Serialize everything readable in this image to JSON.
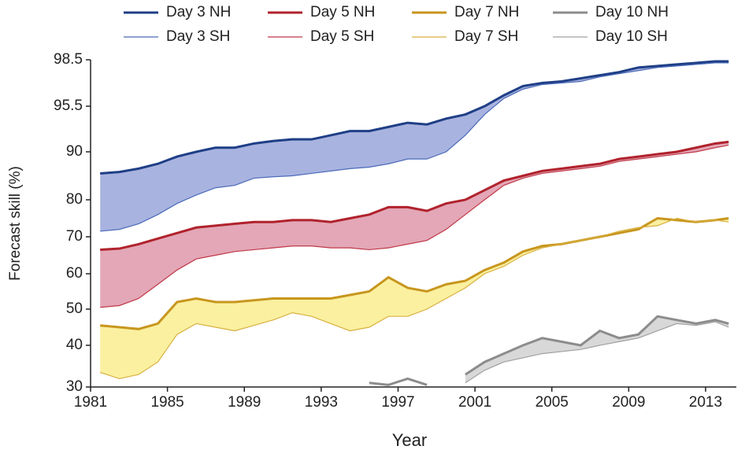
{
  "chart_data": {
    "type": "line",
    "x_label": "Year",
    "y_label": "Forecast skill (%)",
    "x": [
      1981.5,
      1982.5,
      1983.5,
      1984.5,
      1985.5,
      1986.5,
      1987.5,
      1988.5,
      1989.5,
      1990.5,
      1991.5,
      1992.5,
      1993.5,
      1994.5,
      1995.5,
      1996.5,
      1997.5,
      1998.5,
      1999.5,
      2000.5,
      2001.5,
      2002.5,
      2003.5,
      2004.5,
      2005.5,
      2006.5,
      2007.5,
      2008.5,
      2009.5,
      2010.5,
      2011.5,
      2012.5,
      2013.5,
      2014.2
    ],
    "series": [
      {
        "name": "Day 3 NH",
        "color": "#1f3f86",
        "values": [
          85.5,
          85.8,
          86.5,
          87.5,
          89,
          90,
          90.5,
          90.5,
          91,
          91.3,
          91.5,
          91.5,
          92,
          92.5,
          92.5,
          93,
          93.5,
          93.3,
          94,
          94.5,
          95.5,
          96.2,
          96.8,
          97,
          97.1,
          97.3,
          97.5,
          97.7,
          98,
          98.1,
          98.2,
          98.3,
          98.4,
          98.4
        ]
      },
      {
        "name": "Day 3 SH",
        "color": "#4a6ab8",
        "values": [
          71.5,
          72,
          73.5,
          76,
          79,
          81,
          82.5,
          83,
          84.5,
          84.8,
          85,
          85.5,
          86,
          86.5,
          86.8,
          87.5,
          88.5,
          88.5,
          90,
          92,
          94.5,
          96,
          96.6,
          96.9,
          97,
          97.1,
          97.4,
          97.6,
          97.8,
          98,
          98.1,
          98.2,
          98.3,
          98.3
        ]
      },
      {
        "name": "Day 5 NH",
        "color": "#b0222c",
        "values": [
          66.5,
          66.8,
          68,
          69.5,
          71,
          72.5,
          73,
          73.5,
          74,
          74,
          74.5,
          74.5,
          74,
          75,
          76,
          78,
          78,
          77,
          79,
          80,
          82,
          84,
          85,
          86,
          86.5,
          87,
          87.5,
          88.5,
          89,
          89.5,
          90,
          90.5,
          91,
          91.2
        ]
      },
      {
        "name": "Day 5 SH",
        "color": "#c03848",
        "values": [
          50.5,
          51,
          53,
          57,
          61,
          64,
          65,
          66,
          66.5,
          67,
          67.5,
          67.5,
          67,
          67,
          66.5,
          67,
          68,
          69,
          72,
          76,
          80,
          83,
          84.5,
          85.5,
          86,
          86.5,
          87,
          88,
          88.5,
          89,
          89.5,
          90,
          90.5,
          90.8
        ]
      },
      {
        "name": "Day 7 NH",
        "color": "#c8961e",
        "values": [
          45.5,
          45,
          44.5,
          46,
          52,
          53,
          52,
          52,
          52.5,
          53,
          53,
          53,
          53,
          54,
          55,
          59,
          56,
          55,
          57,
          58,
          61,
          63,
          66,
          67.5,
          68,
          69,
          70,
          71,
          72,
          75,
          74.5,
          74,
          74.5,
          75
        ]
      },
      {
        "name": "Day 7 SH",
        "color": "#d8b040",
        "values": [
          33.5,
          32,
          33,
          36,
          43,
          46,
          45,
          44,
          45.5,
          47,
          49,
          48,
          46,
          44,
          45,
          48,
          48,
          50,
          53,
          56,
          60,
          62,
          65,
          67,
          68,
          69,
          70,
          71.5,
          72.5,
          73,
          75,
          74,
          74.5,
          74
        ]
      },
      {
        "name": "Day 10 NH",
        "color": "#8c8c8c",
        "values": [
          null,
          null,
          null,
          null,
          null,
          null,
          null,
          null,
          null,
          null,
          null,
          null,
          null,
          null,
          31,
          30.5,
          32,
          30.5,
          null,
          33,
          36,
          38,
          40,
          42,
          41,
          40,
          44,
          42,
          43,
          48,
          47,
          46,
          47,
          46
        ]
      },
      {
        "name": "Day 10 SH",
        "color": "#a0a0a0",
        "values": [
          null,
          null,
          null,
          null,
          null,
          null,
          null,
          null,
          null,
          null,
          null,
          null,
          null,
          null,
          null,
          null,
          null,
          30.5,
          null,
          31,
          34,
          36,
          37,
          38,
          38.5,
          39,
          40,
          41,
          42,
          44,
          46,
          45.5,
          46.5,
          45
        ]
      }
    ],
    "band_colors": [
      "#a9b3e0",
      "#e3a7b7",
      "#faf0a0",
      "#d8d8d8"
    ],
    "xlim": [
      1981,
      2014.6
    ],
    "xticks": [
      1981,
      1985,
      1989,
      1993,
      1997,
      2001,
      2005,
      2009,
      2013
    ],
    "ylim": [
      30,
      98.5
    ],
    "yticks": [
      30,
      40,
      50,
      60,
      70,
      80,
      90,
      95.5,
      98.5
    ]
  }
}
